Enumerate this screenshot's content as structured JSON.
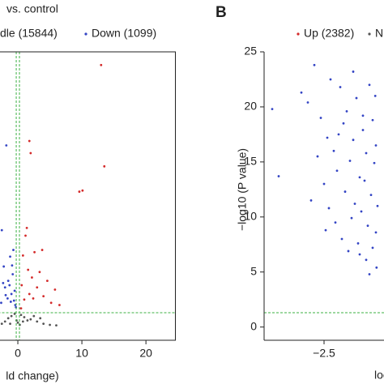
{
  "chart_data": [
    {
      "type": "scatter",
      "title": "vs. control",
      "xlabel": "ld change)",
      "xlim": [
        -5,
        24.6
      ],
      "ylim": [
        -1.2,
        25
      ],
      "xticks": [
        0,
        10,
        20
      ],
      "vlines": [
        -0.25,
        0.25
      ],
      "hline": 1.3,
      "frame": true,
      "series": [
        {
          "name": "dle (15844)",
          "color": "#555555",
          "x": [
            -2,
            -1.5,
            -1,
            -0.5,
            0,
            0.5,
            1,
            1.5,
            2,
            3,
            4,
            5,
            6,
            -2.5,
            -0.2,
            0.3,
            2.5,
            3.5,
            -1.2,
            0.8
          ],
          "values": [
            0.5,
            0.8,
            1.0,
            1.2,
            0.4,
            1.1,
            0.9,
            0.6,
            0.7,
            0.5,
            0.3,
            0.2,
            0.15,
            0.3,
            0.6,
            0.2,
            1.0,
            0.8,
            0.3,
            0.5
          ]
        },
        {
          "name": "Down (1099)",
          "color": "#3344c4",
          "x": [
            -1.8,
            -2.5,
            -2.2,
            -1.5,
            -1.0,
            -0.6,
            -2.0,
            -1.2,
            -0.8,
            -1.6,
            -0.4,
            -2.6,
            -0.7,
            -1.3,
            -0.5,
            -1.9,
            -0.9,
            -2.3,
            -1.1,
            -0.3
          ],
          "values": [
            16.5,
            8.8,
            5.5,
            4.2,
            3.0,
            2.4,
            3.6,
            6.4,
            4.8,
            2.6,
            2.0,
            2.2,
            7.0,
            3.8,
            3.3,
            2.9,
            5.6,
            4.0,
            2.3,
            1.8
          ]
        },
        {
          "color": "#d42a2a",
          "x": [
            13,
            13.5,
            9.6,
            10.1,
            2.0,
            1.8,
            0.8,
            1.2,
            1.6,
            2.2,
            2.6,
            3.0,
            3.4,
            4.0,
            4.6,
            5.2,
            5.8,
            6.5,
            0.6,
            1.0,
            1.4,
            2.4,
            1.8,
            3.8,
            0.5
          ],
          "values": [
            23.8,
            14.6,
            12.3,
            12.4,
            15.8,
            16.9,
            6.5,
            8.3,
            5.2,
            4.5,
            6.8,
            3.6,
            5.0,
            2.8,
            4.2,
            2.2,
            3.4,
            2.0,
            3.8,
            2.5,
            9.0,
            2.6,
            3.0,
            7.0,
            1.7
          ]
        }
      ]
    },
    {
      "type": "scatter",
      "panel_label": "B",
      "ylabel": "−log10 (P value)",
      "xlabel": "loc",
      "xlim": [
        -4.35,
        4.35
      ],
      "ylim": [
        -1.2,
        25
      ],
      "xticks": [
        {
          "value": -2.5,
          "label": "−2.5"
        }
      ],
      "yticks": [
        0,
        5,
        10,
        15,
        20,
        25
      ],
      "hline": 1.3,
      "frame": false,
      "series": [
        {
          "name": "Up (2382)",
          "color": "#d42a2a",
          "x": [],
          "values": []
        },
        {
          "name": "N",
          "color": "#555555",
          "x": [],
          "values": []
        },
        {
          "color": "#3344c4",
          "x": [
            -4.1,
            -3.9,
            -2.8,
            -3.2,
            -3.0,
            -2.3,
            -2.6,
            -2.0,
            -1.9,
            -1.6,
            -2.4,
            -2.7,
            -2.2,
            -1.8,
            -1.5,
            -1.3,
            -1.1,
            -1.0,
            -0.9,
            -2.5,
            -2.1,
            -1.7,
            -1.4,
            -1.2,
            -0.95,
            -2.9,
            -2.35,
            -1.85,
            -1.55,
            -1.25,
            -1.05,
            -0.85,
            -2.15,
            -1.65,
            -1.35,
            -1.15,
            -0.9,
            -2.45,
            -1.95,
            -1.45,
            -1.0,
            -1.75,
            -1.2,
            -0.88,
            -1.1,
            -1.4,
            -1.6,
            -2.05,
            -1.3,
            -0.92
          ],
          "values": [
            19.8,
            13.7,
            23.8,
            21.3,
            20.4,
            22.5,
            19.0,
            21.8,
            18.5,
            23.2,
            17.2,
            15.5,
            16.0,
            19.6,
            20.8,
            17.9,
            22.0,
            18.8,
            16.5,
            13.0,
            14.2,
            15.1,
            13.6,
            15.8,
            14.9,
            11.5,
            10.8,
            12.3,
            11.2,
            13.3,
            12.0,
            11.0,
            9.5,
            9.9,
            10.5,
            9.2,
            8.6,
            8.8,
            8.0,
            7.6,
            7.2,
            6.9,
            6.1,
            5.4,
            4.8,
            6.6,
            17.0,
            17.5,
            19.2,
            21.0
          ]
        }
      ]
    }
  ]
}
